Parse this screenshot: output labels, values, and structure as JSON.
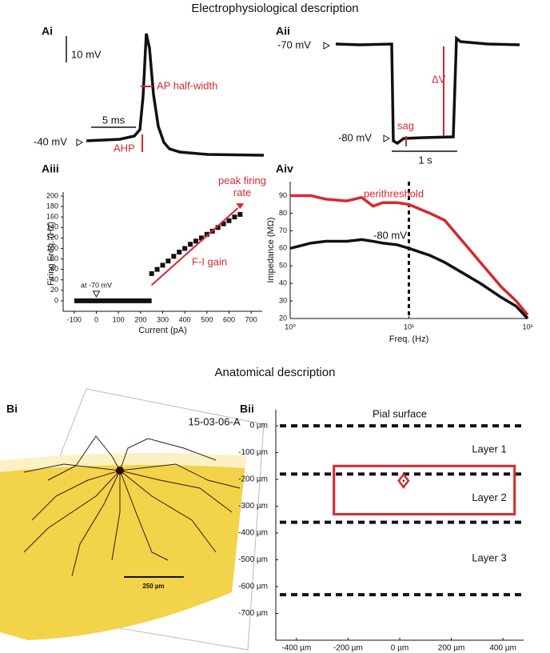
{
  "title": "Electrophysiological description",
  "section_b_title": "Anatomical description",
  "panel_ai": {
    "label": "Ai",
    "scale_v": "10 mV",
    "scale_t": "5 ms",
    "baseline": "-40 mV",
    "half_width": "AP half-width",
    "ahp": "AHP"
  },
  "panel_aii": {
    "label": "Aii",
    "rest": "-70 mV",
    "hyper": "-80 mV",
    "delta_v": "ΔV",
    "sag": "sag",
    "scale_t": "1 s"
  },
  "panel_bi": {
    "label": "Bi",
    "cell_id": "15-03-06-A",
    "scale": "250 µm"
  },
  "chart_data": [
    {
      "type": "scatter",
      "label": "Aiii",
      "ylabel": "Firing Freq. (Hz)",
      "xlabel": "Current (pA)",
      "color": "#111111",
      "x": [
        250,
        275,
        300,
        325,
        350,
        375,
        400,
        425,
        450,
        475,
        500,
        525,
        550,
        575,
        600,
        625,
        650
      ],
      "values": [
        52,
        60,
        68,
        76,
        85,
        93,
        100,
        108,
        114,
        120,
        127,
        133,
        140,
        147,
        153,
        160,
        165
      ],
      "subthreshold": {
        "x": [
          -100,
          250
        ],
        "y": 0
      },
      "fit": {
        "x": [
          250,
          640
        ],
        "y": [
          30,
          177
        ],
        "color": "#d7282f",
        "label": "F-I gain"
      },
      "peak": {
        "x": 650,
        "y": 180,
        "label": "peak firing rate"
      },
      "rest_marker": {
        "x": 0,
        "label": "at -70 mV"
      },
      "xlim": [
        -150,
        750
      ],
      "xticks": [
        -100,
        0,
        100,
        200,
        300,
        400,
        500,
        600,
        700
      ],
      "ylim": [
        -20,
        200
      ],
      "yticks": [
        0,
        20,
        40,
        60,
        80,
        100,
        120,
        140,
        160,
        180,
        200
      ]
    },
    {
      "type": "line",
      "label": "Aiv",
      "ylabel": "Impedance (MΩ)",
      "xlabel": "Freq. (Hz)",
      "xscale": "log",
      "x": [
        1,
        1.5,
        2,
        3,
        4,
        5,
        6,
        8,
        10,
        15,
        20,
        30,
        40,
        60,
        80,
        100
      ],
      "series": [
        {
          "name": "perithreshold",
          "color": "#d7282f",
          "values": [
            90,
            90,
            88,
            87,
            89,
            84,
            86,
            86,
            85,
            80,
            76,
            62,
            52,
            38,
            30,
            22
          ]
        },
        {
          "name": "-80 mV",
          "color": "#111111",
          "values": [
            60,
            63,
            64,
            64,
            65,
            64,
            63,
            62,
            60,
            56,
            52,
            45,
            40,
            32,
            27,
            20
          ]
        }
      ],
      "vline": 10,
      "xlim": [
        1,
        100
      ],
      "xticks": [
        {
          "value": 1,
          "label": "10⁰"
        },
        {
          "value": 10,
          "label": "10¹"
        },
        {
          "value": 100,
          "label": "10²"
        }
      ],
      "ylim": [
        20,
        98
      ],
      "yticks": [
        20,
        30,
        40,
        50,
        60,
        70,
        80,
        90
      ]
    },
    {
      "type": "layers",
      "label": "Bii",
      "xlim": [
        -480,
        480
      ],
      "xticks": [
        {
          "value": -400,
          "label": "-400 µm"
        },
        {
          "value": -200,
          "label": "-200 µm"
        },
        {
          "value": 0,
          "label": "0 µm"
        },
        {
          "value": 200,
          "label": "200 µm"
        },
        {
          "value": 400,
          "label": "400 µm"
        }
      ],
      "ylim": [
        -800,
        60
      ],
      "yticks": [
        {
          "value": 0,
          "label": "0 µm"
        },
        {
          "value": -100,
          "label": "-100 µm"
        },
        {
          "value": -200,
          "label": "-200 µm"
        },
        {
          "value": -300,
          "label": "-300 µm"
        },
        {
          "value": -400,
          "label": "-400 µm"
        },
        {
          "value": -500,
          "label": "-500 µm"
        },
        {
          "value": -600,
          "label": "-600 µm"
        },
        {
          "value": -700,
          "label": "-700 µm"
        }
      ],
      "boundaries": [
        0,
        -180,
        -360,
        -630
      ],
      "boundary_label": "Pial surface",
      "layers": [
        "Layer 1",
        "Layer 2",
        "Layer 3"
      ],
      "box": {
        "x": [
          -255,
          445
        ],
        "y": [
          -150,
          -330
        ],
        "color": "#d7282f"
      },
      "soma": {
        "x": 15,
        "y": -205
      }
    }
  ]
}
